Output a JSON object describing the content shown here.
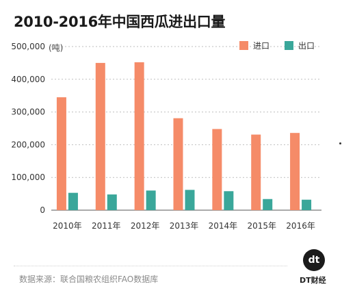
{
  "title": "2010-2016年中国西瓜进出口量",
  "brand": {
    "logo_text": "dt",
    "name": "DT财经"
  },
  "source": "数据来源：联合国粮农组织FAO数据库",
  "colors": {
    "import": "#f58b68",
    "export": "#3aa79a",
    "grid": "#bdbdbd"
  },
  "chart_data": {
    "type": "bar",
    "title": "2010-2016年中国西瓜进出口量",
    "unit": "(吨)",
    "categories": [
      "2010年",
      "2011年",
      "2012年",
      "2013年",
      "2014年",
      "2015年",
      "2016年"
    ],
    "series": [
      {
        "name": "进口",
        "values": [
          345000,
          450000,
          452000,
          281000,
          248000,
          231000,
          236000
        ]
      },
      {
        "name": "出口",
        "values": [
          53000,
          48000,
          60000,
          62000,
          58000,
          34000,
          32000
        ]
      }
    ],
    "yticks": [
      "500,000",
      "400,000",
      "300,000",
      "200,000",
      "100,000",
      "0"
    ],
    "ylim": [
      0,
      500000
    ],
    "grid": true,
    "legend_position": "top-right"
  }
}
